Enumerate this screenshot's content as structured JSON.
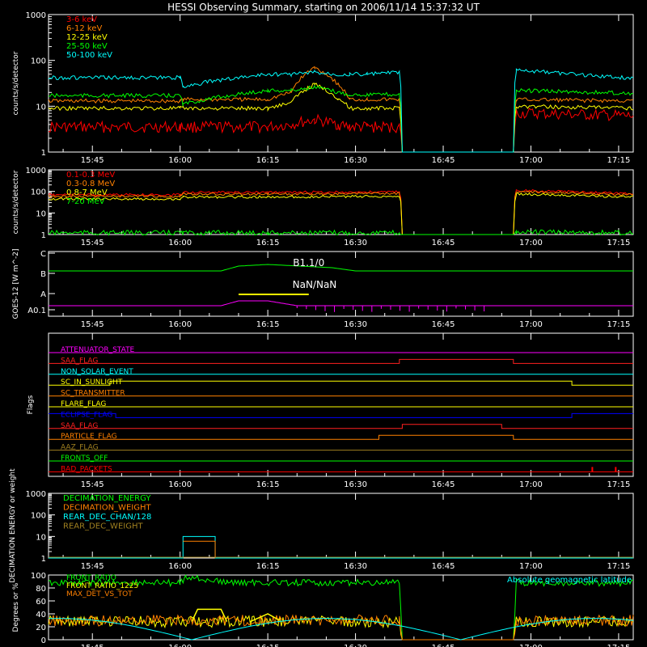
{
  "title": "HESSI Observing Summary, starting on 2006/11/14 15:37:32 UT",
  "time_ticks": [
    "15:45",
    "16:00",
    "16:15",
    "16:30",
    "16:45",
    "17:00",
    "17:15"
  ],
  "time_range_min": [
    37.5,
    137.5
  ],
  "colors": {
    "fg": "#ffffff",
    "red": "#ff0000",
    "orange": "#ff8000",
    "yellow": "#ffff00",
    "green": "#00ff00",
    "cyan": "#00ffff",
    "magenta": "#ff00ff",
    "blue": "#0000ff",
    "olive": "#a08020",
    "brightred": "#ff2020"
  },
  "chart_data": [
    {
      "type": "line",
      "panel": "lo-energy",
      "ylabel": "counts/s/detector",
      "yscale": "log",
      "ylim": [
        1,
        1000
      ],
      "yticks": [
        "1",
        "10",
        "100",
        "1000"
      ],
      "x": [
        37.5,
        60,
        60.5,
        75,
        79,
        83,
        87,
        89,
        92,
        97.5,
        98,
        117,
        117.5,
        137.5
      ],
      "series": [
        {
          "name": "3-6 keV",
          "color": "#ff0000",
          "values": [
            3.5,
            3.5,
            3.5,
            3.5,
            4,
            5,
            4,
            3.5,
            3.5,
            3.5,
            1,
            1,
            7,
            6
          ]
        },
        {
          "name": "6-12 keV",
          "color": "#ff8000",
          "values": [
            13,
            13,
            14,
            14,
            20,
            70,
            30,
            14,
            14,
            14,
            1,
            1,
            14,
            13
          ]
        },
        {
          "name": "12-25 keV",
          "color": "#ffff00",
          "values": [
            9,
            9,
            9,
            9,
            12,
            30,
            15,
            9,
            9,
            9,
            1,
            1,
            10,
            9
          ]
        },
        {
          "name": "25-50 keV",
          "color": "#00ff00",
          "values": [
            17,
            17,
            11,
            22,
            22,
            26,
            20,
            18,
            18,
            18,
            1,
            1,
            22,
            19
          ]
        },
        {
          "name": "50-100 keV",
          "color": "#00ffff",
          "values": [
            42,
            42,
            27,
            50,
            50,
            55,
            50,
            50,
            50,
            55,
            1,
            1,
            60,
            40
          ]
        }
      ]
    },
    {
      "type": "line",
      "panel": "hi-energy",
      "ylabel": "counts/s/detector",
      "yscale": "log",
      "ylim": [
        1,
        1000
      ],
      "yticks": [
        "1",
        "10",
        "100",
        "1000"
      ],
      "x": [
        37.5,
        60,
        60.5,
        75,
        97.5,
        98,
        117,
        117.5,
        137.5
      ],
      "series": [
        {
          "name": "0.1-0.3 MeV",
          "color": "#ff0000",
          "values": [
            70,
            70,
            90,
            90,
            95,
            1,
            1,
            110,
            80
          ]
        },
        {
          "name": "0.3-0.8 MeV",
          "color": "#ff8000",
          "values": [
            60,
            60,
            75,
            75,
            80,
            1,
            1,
            100,
            70
          ]
        },
        {
          "name": "0.8-7 MeV",
          "color": "#ffff00",
          "values": [
            45,
            45,
            55,
            55,
            60,
            1,
            1,
            75,
            55
          ]
        },
        {
          "name": "7-20 MeV",
          "color": "#00ff00",
          "values": [
            1.2,
            1.2,
            1.2,
            1.2,
            1.2,
            1,
            1,
            1.3,
            1.2
          ]
        }
      ]
    },
    {
      "type": "line",
      "panel": "goes",
      "ylabel": "GOES-12 [W m^-2]",
      "yticks": [
        "A0.1",
        "A",
        "B",
        "C"
      ],
      "annotations": [
        "B1.1/0",
        "NaN/NaN"
      ],
      "series": [
        {
          "name": "GOES long",
          "color": "#00ff00",
          "x": [
            37.5,
            67,
            70,
            75,
            86,
            90,
            137.5
          ],
          "values": [
            0.4,
            0.4,
            0.55,
            0.6,
            0.5,
            0.4,
            0.4
          ]
        },
        {
          "name": "GOES short",
          "color": "#ff00ff",
          "x": [
            37.5,
            67,
            70,
            75,
            80,
            137.5
          ],
          "values": [
            -0.55,
            -0.55,
            -0.4,
            -0.4,
            -0.55,
            -0.55
          ]
        }
      ]
    },
    {
      "type": "line",
      "panel": "flags",
      "ylabel": "Flags",
      "flags": [
        {
          "name": "ATTENUATOR_STATE",
          "color": "#ff00ff",
          "steps": [
            [
              37.5,
              0
            ]
          ]
        },
        {
          "name": "SAA_FLAG",
          "color": "#ff2020",
          "steps": [
            [
              37.5,
              0
            ],
            [
              97.5,
              1
            ],
            [
              117,
              0
            ]
          ]
        },
        {
          "name": "NON_SOLAR_EVENT",
          "color": "#00ffff",
          "steps": [
            [
              37.5,
              0
            ]
          ]
        },
        {
          "name": "SC_IN_SUNLIGHT",
          "color": "#ffff00",
          "steps": [
            [
              37.5,
              0
            ],
            [
              48,
              1
            ],
            [
              127,
              0
            ]
          ]
        },
        {
          "name": "SC_TRANSMITTER",
          "color": "#ff8000",
          "steps": [
            [
              37.5,
              0
            ]
          ]
        },
        {
          "name": "FLARE_FLAG",
          "color": "#ffff00",
          "steps": [
            [
              37.5,
              0
            ]
          ]
        },
        {
          "name": "ECLIPSE_FLAG",
          "color": "#0000ff",
          "steps": [
            [
              37.5,
              1
            ],
            [
              49,
              0
            ],
            [
              127,
              1
            ]
          ]
        },
        {
          "name": "SAA_FLAG",
          "color": "#ff2020",
          "steps": [
            [
              37.5,
              0
            ],
            [
              98,
              1
            ],
            [
              115,
              0
            ]
          ]
        },
        {
          "name": "PARTICLE_FLAG",
          "color": "#ff8000",
          "steps": [
            [
              37.5,
              0
            ],
            [
              94,
              1
            ],
            [
              117,
              0
            ]
          ]
        },
        {
          "name": "AAZ_FLAG",
          "color": "#a08020",
          "steps": [
            [
              37.5,
              0
            ]
          ]
        },
        {
          "name": "FRONTS_OFF",
          "color": "#00ff00",
          "steps": [
            [
              37.5,
              0
            ]
          ]
        },
        {
          "name": "BAD_PACKETS",
          "color": "#ff0000",
          "steps": [
            [
              37.5,
              0
            ]
          ]
        }
      ]
    },
    {
      "type": "line",
      "panel": "decimation",
      "ylabel": "DECIMATION ENERGY or weight",
      "yscale": "log",
      "ylim": [
        1,
        1000
      ],
      "yticks": [
        "1",
        "10",
        "100",
        "1000"
      ],
      "series": [
        {
          "name": "DECIMATION_ENERGY",
          "color": "#00ff00"
        },
        {
          "name": "DECIMATION_WEIGHT",
          "color": "#ff8000"
        },
        {
          "name": "REAR_DEC_CHAN/128",
          "color": "#00ffff"
        },
        {
          "name": "REAR_DEC_WEIGHT",
          "color": "#a08020"
        }
      ]
    },
    {
      "type": "line",
      "panel": "ratios",
      "ylabel": "Degrees or %",
      "ylim": [
        0,
        100
      ],
      "yticks": [
        "0",
        "20",
        "40",
        "60",
        "80",
        "100"
      ],
      "annotation": "Absolute geomagnetic latitude",
      "series": [
        {
          "name": "FRONT_RATIO",
          "color": "#00ff00",
          "x": [
            37.5,
            60,
            61,
            68,
            97.5,
            98,
            117,
            117.5,
            137.5
          ],
          "values": [
            88,
            88,
            97,
            88,
            88,
            0,
            0,
            88,
            88
          ]
        },
        {
          "name": "FRONT_RATIO_1225",
          "color": "#ffff00",
          "x": [
            37.5,
            97.5,
            98,
            117,
            117.5,
            137.5
          ],
          "values": [
            28,
            28,
            0,
            0,
            28,
            28
          ]
        },
        {
          "name": "MAX_DET_VS_TOT",
          "color": "#ff8000",
          "x": [
            37.5,
            97.5,
            98,
            117,
            117.5,
            137.5
          ],
          "values": [
            30,
            30,
            0,
            0,
            30,
            30
          ]
        }
      ]
    }
  ]
}
